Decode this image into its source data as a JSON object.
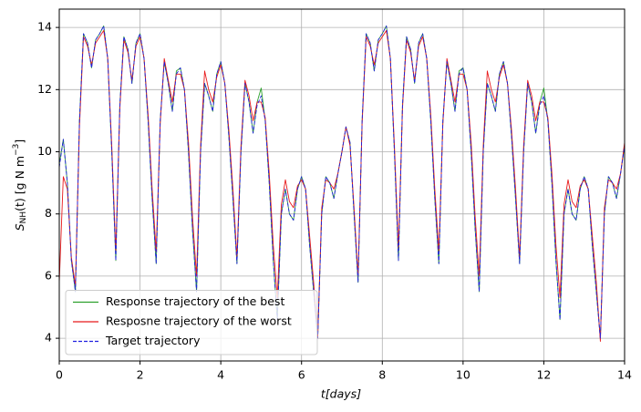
{
  "chart_data": {
    "type": "line",
    "xlabel": "t[days]",
    "ylabel": {
      "main": "S",
      "sub": "NH",
      "mid": "(t) [g N m",
      "sup": "−3",
      "end": "]"
    },
    "xlim": [
      0,
      14
    ],
    "ylim": [
      3.27,
      14.59
    ],
    "xticks": [
      0,
      2,
      4,
      6,
      8,
      10,
      12,
      14
    ],
    "yticks": [
      4,
      6,
      8,
      10,
      12,
      14
    ],
    "grid": true,
    "legend": "lower left",
    "x": [
      0,
      0.1,
      0.2,
      0.3,
      0.4,
      0.5,
      0.6,
      0.7,
      0.8,
      0.9,
      1,
      1.1,
      1.2,
      1.3,
      1.4,
      1.5,
      1.6,
      1.7,
      1.8,
      1.9,
      2,
      2.1,
      2.2,
      2.3,
      2.4,
      2.5,
      2.6,
      2.7,
      2.8,
      2.9,
      3,
      3.1,
      3.2,
      3.3,
      3.4,
      3.5,
      3.6,
      3.7,
      3.8,
      3.9,
      4,
      4.1,
      4.2,
      4.3,
      4.4,
      4.5,
      4.6,
      4.7,
      4.8,
      4.9,
      5,
      5.1,
      5.2,
      5.3,
      5.4,
      5.5,
      5.6,
      5.7,
      5.8,
      5.9,
      6,
      6.1,
      6.2,
      6.3,
      6.4,
      6.5,
      6.6,
      6.7,
      6.8,
      6.9,
      7,
      7.1,
      7.2,
      7.3,
      7.4,
      7.5,
      7.6,
      7.7,
      7.8,
      7.9,
      8,
      8.1,
      8.2,
      8.3,
      8.4,
      8.5,
      8.6,
      8.7,
      8.8,
      8.9,
      9,
      9.1,
      9.2,
      9.3,
      9.4,
      9.5,
      9.6,
      9.7,
      9.8,
      9.9,
      10,
      10.1,
      10.2,
      10.3,
      10.4,
      10.5,
      10.6,
      10.7,
      10.8,
      10.9,
      11,
      11.1,
      11.2,
      11.3,
      11.4,
      11.5,
      11.6,
      11.7,
      11.8,
      11.9,
      12,
      12.1,
      12.2,
      12.3,
      12.4,
      12.5,
      12.6,
      12.7,
      12.8,
      12.9,
      13,
      13.1,
      13.2,
      13.3,
      13.4,
      13.5,
      13.6,
      13.7,
      13.8,
      13.9,
      14
    ],
    "series": [
      {
        "name": "Response trajectory of the best",
        "color": "#2ca02c",
        "linestyle": "solid",
        "values": [
          9.6,
          10.4,
          9.0,
          6.5,
          5.5,
          11.0,
          13.8,
          13.5,
          12.7,
          13.6,
          13.8,
          14.05,
          13.0,
          10.0,
          6.5,
          11.5,
          13.7,
          13.3,
          12.2,
          13.5,
          13.8,
          13.0,
          11.0,
          8.5,
          6.4,
          11.0,
          12.9,
          12.2,
          11.3,
          12.6,
          12.7,
          12.0,
          10.0,
          7.5,
          5.5,
          10.0,
          12.2,
          11.8,
          11.3,
          12.5,
          12.9,
          12.2,
          10.5,
          8.5,
          6.4,
          10.0,
          12.2,
          11.6,
          10.6,
          11.6,
          12.05,
          11.0,
          9.0,
          6.5,
          4.6,
          8.0,
          8.8,
          8.0,
          7.8,
          8.8,
          9.2,
          8.8,
          7.0,
          5.5,
          4.0,
          8.0,
          9.2,
          9.0,
          8.5,
          9.3,
          10.0,
          10.8,
          10.3,
          8.0,
          5.8,
          11.0,
          13.8,
          13.5,
          12.6,
          13.6,
          13.8,
          14.05,
          13.0,
          10.0,
          6.5,
          11.5,
          13.7,
          13.3,
          12.2,
          13.5,
          13.8,
          13.0,
          11.0,
          8.5,
          6.4,
          11.0,
          12.9,
          12.2,
          11.3,
          12.6,
          12.7,
          12.0,
          10.0,
          7.5,
          5.5,
          10.0,
          12.2,
          11.8,
          11.3,
          12.5,
          12.9,
          12.2,
          10.5,
          8.5,
          6.4,
          10.0,
          12.2,
          11.6,
          10.6,
          11.6,
          12.05,
          11.0,
          9.0,
          6.5,
          4.6,
          8.0,
          8.8,
          8.0,
          7.8,
          8.8,
          9.2,
          8.8,
          7.0,
          5.5,
          4.0,
          8.0,
          9.2,
          9.0,
          8.5,
          9.3,
          10.2
        ]
      },
      {
        "name": "Resposne trajectory of the worst",
        "color": "#e8191b",
        "linestyle": "solid",
        "values": [
          5.8,
          9.2,
          8.8,
          6.6,
          5.7,
          10.8,
          13.7,
          13.4,
          12.8,
          13.5,
          13.7,
          13.9,
          13.0,
          10.2,
          6.8,
          11.4,
          13.6,
          13.2,
          12.3,
          13.4,
          13.7,
          13.0,
          11.2,
          8.8,
          6.8,
          10.9,
          13.0,
          12.3,
          11.6,
          12.5,
          12.5,
          12.0,
          10.3,
          7.9,
          6.0,
          10.2,
          12.6,
          12.0,
          11.6,
          12.4,
          12.8,
          12.2,
          10.7,
          8.8,
          6.6,
          10.2,
          12.3,
          11.8,
          11.0,
          11.6,
          11.6,
          11.1,
          9.3,
          7.0,
          5.3,
          8.3,
          9.1,
          8.4,
          8.2,
          8.9,
          9.1,
          8.8,
          7.3,
          5.8,
          4.0,
          8.2,
          9.1,
          9.0,
          8.8,
          9.3,
          10.0,
          10.8,
          10.2,
          8.2,
          6.0,
          10.9,
          13.7,
          13.4,
          12.8,
          13.5,
          13.7,
          13.9,
          13.0,
          10.2,
          6.9,
          11.4,
          13.6,
          13.2,
          12.3,
          13.4,
          13.7,
          13.0,
          11.2,
          8.8,
          6.8,
          10.9,
          13.0,
          12.3,
          11.6,
          12.5,
          12.5,
          12.0,
          10.3,
          7.9,
          6.0,
          10.2,
          12.6,
          12.0,
          11.6,
          12.4,
          12.8,
          12.2,
          10.7,
          8.8,
          6.6,
          10.2,
          12.3,
          11.8,
          11.0,
          11.6,
          11.6,
          11.1,
          9.3,
          7.0,
          5.3,
          8.3,
          9.1,
          8.4,
          8.2,
          8.9,
          9.1,
          8.8,
          7.3,
          5.8,
          3.9,
          8.2,
          9.1,
          9.0,
          8.8,
          9.3,
          10.3
        ]
      },
      {
        "name": "Target trajectory",
        "color": "#1f1fe0",
        "linestyle": "dashed",
        "values": [
          9.5,
          10.4,
          9.0,
          6.5,
          5.5,
          11.0,
          13.8,
          13.5,
          12.7,
          13.6,
          13.8,
          14.05,
          13.0,
          10.0,
          6.5,
          11.5,
          13.7,
          13.3,
          12.2,
          13.5,
          13.8,
          13.0,
          11.0,
          8.5,
          6.4,
          11.0,
          12.9,
          12.2,
          11.3,
          12.5,
          12.7,
          12.0,
          10.0,
          7.5,
          5.5,
          10.0,
          12.2,
          11.8,
          11.3,
          12.5,
          12.9,
          12.2,
          10.5,
          8.5,
          6.4,
          10.0,
          12.2,
          11.6,
          10.6,
          11.5,
          11.8,
          11.0,
          9.0,
          6.5,
          4.6,
          8.0,
          8.8,
          8.0,
          7.8,
          8.8,
          9.2,
          8.8,
          7.0,
          5.5,
          4.0,
          8.0,
          9.2,
          9.0,
          8.5,
          9.3,
          10.0,
          10.8,
          10.3,
          8.0,
          5.8,
          11.0,
          13.8,
          13.5,
          12.6,
          13.6,
          13.8,
          14.05,
          13.0,
          10.0,
          6.5,
          11.5,
          13.7,
          13.3,
          12.2,
          13.5,
          13.8,
          13.0,
          11.0,
          8.5,
          6.4,
          11.0,
          12.9,
          12.2,
          11.3,
          12.5,
          12.7,
          12.0,
          10.0,
          7.5,
          5.5,
          10.0,
          12.2,
          11.8,
          11.3,
          12.5,
          12.9,
          12.2,
          10.5,
          8.5,
          6.4,
          10.0,
          12.2,
          11.6,
          10.6,
          11.5,
          11.8,
          11.0,
          9.0,
          6.5,
          4.6,
          8.0,
          8.8,
          8.0,
          7.8,
          8.8,
          9.2,
          8.8,
          7.0,
          5.5,
          4.0,
          8.0,
          9.2,
          9.0,
          8.5,
          9.3,
          10.2
        ]
      }
    ]
  }
}
